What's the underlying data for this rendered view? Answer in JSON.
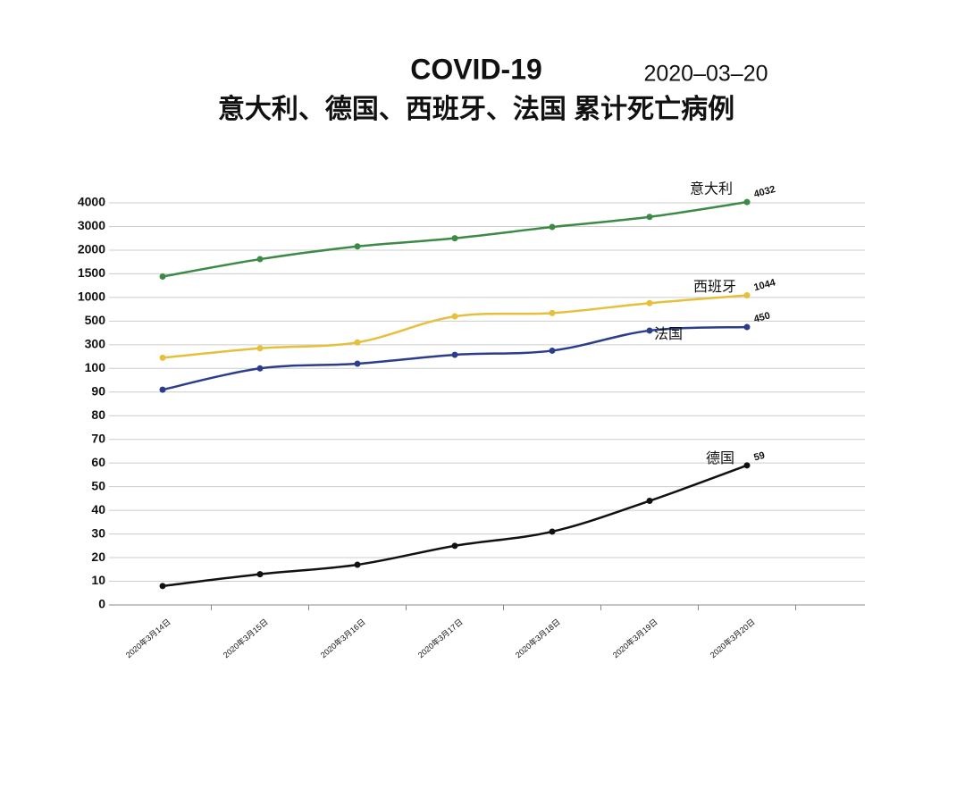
{
  "chart_data": {
    "type": "line",
    "title": "COVID-19",
    "date": "2020–03–20",
    "subtitle": "意大利、德国、西班牙、法国 累计死亡病例",
    "categories": [
      "2020年3月14日",
      "2020年3月15日",
      "2020年3月16日",
      "2020年3月17日",
      "2020年3月18日",
      "2020年3月19日",
      "2020年3月20日"
    ],
    "series": [
      {
        "name": "意大利",
        "color": "#3b8b47",
        "values": [
          1441,
          1809,
          2158,
          2503,
          2978,
          3405,
          4032
        ]
      },
      {
        "name": "西班牙",
        "color": "#e6c03c",
        "values": [
          190,
          270,
          320,
          600,
          670,
          880,
          1044
        ]
      },
      {
        "name": "法国",
        "color": "#2c3d8c",
        "values": [
          91,
          100,
          140,
          215,
          250,
          420,
          450
        ]
      },
      {
        "name": "德国",
        "color": "#111111",
        "values": [
          8,
          13,
          17,
          25,
          31,
          44,
          59
        ]
      }
    ],
    "ylim": [
      0,
      4000
    ],
    "yticks": [
      0,
      10,
      20,
      30,
      40,
      50,
      60,
      70,
      80,
      90,
      100,
      300,
      500,
      1000,
      1500,
      2000,
      3000,
      4000
    ],
    "grid": true
  }
}
